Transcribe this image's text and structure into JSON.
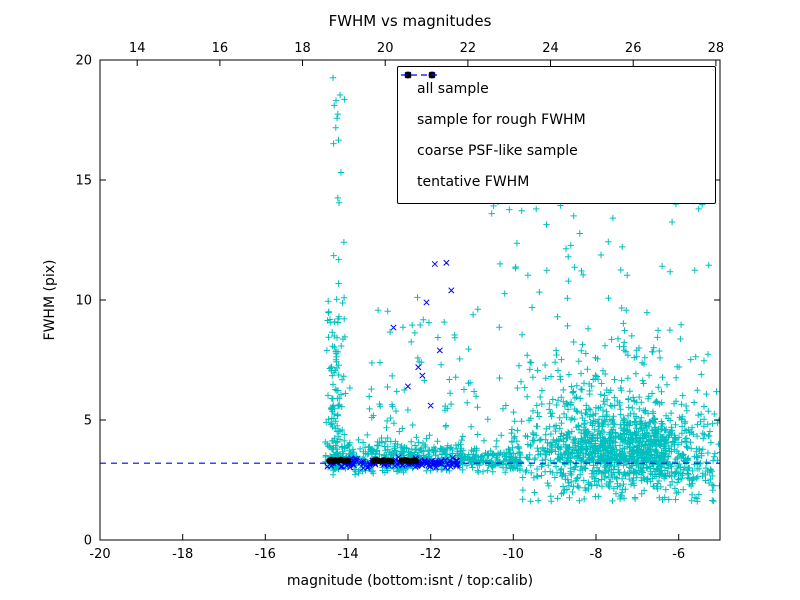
{
  "chart_data": {
    "type": "scatter",
    "title": "FWHM vs magnitudes",
    "xlabel": "magnitude (bottom:isnt / top:calib)",
    "ylabel": "FWHM (pix)",
    "xlim": [
      -20,
      -5
    ],
    "ylim": [
      0,
      20
    ],
    "x2lim": [
      13.1,
      28.1
    ],
    "x_ticks": [
      -20,
      -18,
      -16,
      -14,
      -12,
      -10,
      -8,
      -6
    ],
    "x2_ticks": [
      14,
      16,
      18,
      20,
      22,
      24,
      26,
      28
    ],
    "y_ticks": [
      0,
      5,
      10,
      15,
      20
    ],
    "grid": false,
    "tentative_fwhm": {
      "y": 3.2,
      "style": "dashed",
      "color": "#0000ff"
    },
    "legend": {
      "position": "upper right",
      "entries": [
        {
          "label": "all sample",
          "marker": "plus",
          "color": "#00bfbf"
        },
        {
          "label": "sample for rough FWHM",
          "marker": "x",
          "color": "#0000ff"
        },
        {
          "label": "coarse PSF-like sample",
          "marker": "dot",
          "color": "#000000"
        },
        {
          "label": "tentative FWHM",
          "marker": "dashed-line",
          "color": "#0000ff"
        }
      ]
    },
    "series": [
      {
        "name": "all sample",
        "marker": "plus",
        "color": "#00bfbf",
        "clusters": [
          {
            "count": 380,
            "x": {
              "dist": "uniform",
              "a": -14.55,
              "b": -11.2
            },
            "y": {
              "dist": "gauss",
              "mean": 3.4,
              "sd": 0.35,
              "min": 2.7,
              "max": 4.8
            }
          },
          {
            "count": 130,
            "x": {
              "dist": "gauss",
              "mean": -14.3,
              "sd": 0.12,
              "min": -14.55,
              "max": -13.95
            },
            "y": {
              "dist": "halfgauss",
              "base": 2.9,
              "sd": 4.0,
              "max": 20
            }
          },
          {
            "count": 90,
            "x": {
              "dist": "uniform",
              "a": -13.6,
              "b": -10.8
            },
            "y": {
              "dist": "halfgauss",
              "base": 3.6,
              "sd": 3.2,
              "max": 15
            }
          },
          {
            "count": 450,
            "x": {
              "dist": "gauss",
              "mean": -8.0,
              "sd": 1.3,
              "min": -10.8,
              "max": -5.0
            },
            "y": {
              "dist": "halfgauss",
              "base": 3.2,
              "sd": 2.6,
              "max": 15.5
            }
          },
          {
            "count": 900,
            "x": {
              "dist": "gauss",
              "mean": -7.2,
              "sd": 1.0,
              "min": -10.2,
              "max": -5.0
            },
            "y": {
              "dist": "gauss",
              "mean": 3.7,
              "sd": 0.8,
              "min": 2.1,
              "max": 6.5
            }
          },
          {
            "count": 160,
            "x": {
              "dist": "uniform",
              "a": -11.3,
              "b": -9.8
            },
            "y": {
              "dist": "gauss",
              "mean": 3.3,
              "sd": 0.25,
              "min": 2.8,
              "max": 4.2
            }
          },
          {
            "count": 120,
            "x": {
              "dist": "uniform",
              "a": -9.8,
              "b": -5.0
            },
            "y": {
              "dist": "uniform",
              "a": 1.6,
              "b": 3.0
            }
          },
          {
            "count": 12,
            "x": {
              "dist": "gauss",
              "mean": -14.28,
              "sd": 0.1,
              "min": -14.5,
              "max": -14.0
            },
            "y": {
              "dist": "uniform",
              "a": 14,
              "b": 20
            }
          },
          {
            "count": 40,
            "x": {
              "dist": "uniform",
              "a": -10.6,
              "b": -5.2
            },
            "y": {
              "dist": "uniform",
              "a": 11,
              "b": 15.3
            }
          },
          {
            "count": 6,
            "x": {
              "dist": "uniform",
              "a": -12.6,
              "b": -10.6
            },
            "y": {
              "dist": "uniform",
              "a": 15.5,
              "b": 19.8
            }
          }
        ],
        "points": []
      },
      {
        "name": "sample for rough FWHM",
        "marker": "x",
        "color": "#0000ff",
        "clusters": [
          {
            "count": 130,
            "x": {
              "dist": "uniform",
              "a": -14.5,
              "b": -11.35
            },
            "y": {
              "dist": "gauss",
              "mean": 3.2,
              "sd": 0.09,
              "min": 2.95,
              "max": 3.5
            }
          }
        ],
        "points": [
          [
            -12.9,
            8.85
          ],
          [
            -12.55,
            6.4
          ],
          [
            -12.3,
            7.2
          ],
          [
            -12.1,
            9.9
          ],
          [
            -11.9,
            11.5
          ],
          [
            -11.62,
            11.55
          ],
          [
            -11.5,
            10.4
          ],
          [
            -12.0,
            5.6
          ],
          [
            -11.78,
            7.9
          ],
          [
            -12.2,
            6.85
          ]
        ]
      },
      {
        "name": "coarse PSF-like sample",
        "marker": "dot",
        "color": "#000000",
        "clusters": [],
        "points": [
          [
            -14.45,
            3.3
          ],
          [
            -14.4,
            3.33
          ],
          [
            -14.34,
            3.28
          ],
          [
            -14.3,
            3.32
          ],
          [
            -14.24,
            3.3
          ],
          [
            -14.18,
            3.34
          ],
          [
            -14.1,
            3.3
          ],
          [
            -14.0,
            3.29
          ],
          [
            -13.38,
            3.31
          ],
          [
            -13.32,
            3.34
          ],
          [
            -13.26,
            3.3
          ],
          [
            -13.2,
            3.28
          ],
          [
            -13.12,
            3.32
          ],
          [
            -13.02,
            3.3
          ],
          [
            -12.95,
            3.28
          ],
          [
            -12.7,
            3.31
          ],
          [
            -12.62,
            3.33
          ],
          [
            -12.55,
            3.3
          ],
          [
            -12.48,
            3.28
          ],
          [
            -12.42,
            3.31
          ],
          [
            -12.36,
            3.3
          ]
        ]
      }
    ]
  }
}
